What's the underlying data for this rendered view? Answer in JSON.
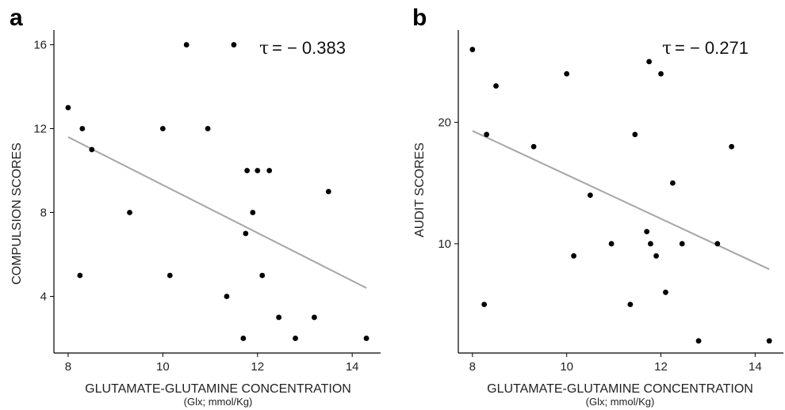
{
  "chart_data": [
    {
      "type": "scatter",
      "panel_label": "a",
      "annotation": "τ = −0.383",
      "annotation_symbol": "τ",
      "annotation_value": "= − 0.383",
      "xlabel": "GLUTAMATE-GLUTAMINE CONCENTRATION",
      "xlabel_sub": "(Glx; mmol/Kg)",
      "ylabel": "COMPULSION SCORES",
      "xlim": [
        7.7,
        14.6
      ],
      "ylim": [
        1.3,
        16.7
      ],
      "xticks": [
        8,
        10,
        12,
        14
      ],
      "yticks": [
        4,
        8,
        12,
        16
      ],
      "grid": false,
      "points": [
        {
          "x": 8.0,
          "y": 13
        },
        {
          "x": 8.3,
          "y": 12
        },
        {
          "x": 8.5,
          "y": 11
        },
        {
          "x": 8.25,
          "y": 5
        },
        {
          "x": 9.3,
          "y": 8
        },
        {
          "x": 10.0,
          "y": 12
        },
        {
          "x": 10.15,
          "y": 5
        },
        {
          "x": 10.5,
          "y": 16
        },
        {
          "x": 10.95,
          "y": 12
        },
        {
          "x": 11.35,
          "y": 4
        },
        {
          "x": 11.5,
          "y": 16
        },
        {
          "x": 11.7,
          "y": 2
        },
        {
          "x": 11.75,
          "y": 7
        },
        {
          "x": 11.78,
          "y": 10
        },
        {
          "x": 11.9,
          "y": 8
        },
        {
          "x": 12.0,
          "y": 10
        },
        {
          "x": 12.1,
          "y": 5
        },
        {
          "x": 12.25,
          "y": 10
        },
        {
          "x": 12.45,
          "y": 3
        },
        {
          "x": 12.8,
          "y": 2
        },
        {
          "x": 13.2,
          "y": 3
        },
        {
          "x": 13.5,
          "y": 9
        },
        {
          "x": 14.3,
          "y": 2
        }
      ],
      "trend": {
        "x": [
          8.0,
          14.3
        ],
        "y": [
          11.6,
          4.4
        ]
      }
    },
    {
      "type": "scatter",
      "panel_label": "b",
      "annotation": "τ = −0.271",
      "annotation_symbol": "τ",
      "annotation_value": "= − 0.271",
      "xlabel": "GLUTAMATE-GLUTAMINE CONCENTRATION",
      "xlabel_sub": "(Glx; mmol/Kg)",
      "ylabel": "AUDIT SCORES",
      "xlim": [
        7.7,
        14.6
      ],
      "ylim": [
        1.0,
        27.6
      ],
      "xticks": [
        8,
        10,
        12,
        14
      ],
      "yticks": [
        10,
        20
      ],
      "grid": false,
      "points": [
        {
          "x": 8.0,
          "y": 26
        },
        {
          "x": 8.3,
          "y": 19
        },
        {
          "x": 8.25,
          "y": 5
        },
        {
          "x": 8.5,
          "y": 23
        },
        {
          "x": 9.3,
          "y": 18
        },
        {
          "x": 10.0,
          "y": 24
        },
        {
          "x": 10.15,
          "y": 9
        },
        {
          "x": 10.5,
          "y": 14
        },
        {
          "x": 10.95,
          "y": 10
        },
        {
          "x": 11.35,
          "y": 5
        },
        {
          "x": 11.45,
          "y": 19
        },
        {
          "x": 11.7,
          "y": 11
        },
        {
          "x": 11.75,
          "y": 25
        },
        {
          "x": 11.78,
          "y": 10
        },
        {
          "x": 11.9,
          "y": 9
        },
        {
          "x": 12.0,
          "y": 24
        },
        {
          "x": 12.1,
          "y": 6
        },
        {
          "x": 12.25,
          "y": 15
        },
        {
          "x": 12.45,
          "y": 10
        },
        {
          "x": 12.8,
          "y": 2
        },
        {
          "x": 13.2,
          "y": 10
        },
        {
          "x": 13.5,
          "y": 18
        },
        {
          "x": 14.3,
          "y": 2
        }
      ],
      "trend": {
        "x": [
          8.0,
          14.3
        ],
        "y": [
          19.3,
          7.9
        ]
      }
    }
  ]
}
